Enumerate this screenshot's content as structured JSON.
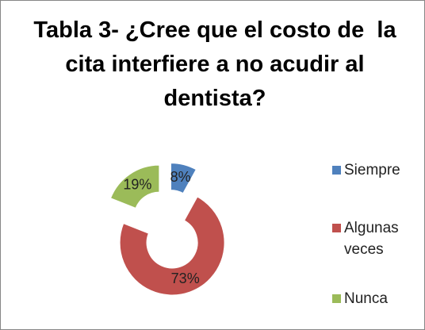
{
  "chart_data": {
    "type": "pie",
    "title": "Tabla 3- ¿Cree que el costo de  la cita interfiere a no acudir al dentista?",
    "categories": [
      "Siempre",
      "Algunas veces",
      "Nunca"
    ],
    "values": [
      8,
      73,
      19
    ],
    "value_labels": [
      "8%",
      "73%",
      "19%"
    ],
    "colors": [
      "#4f81bd",
      "#c0504d",
      "#9bbb59"
    ],
    "donut": true,
    "exploded": true,
    "legend": "right"
  }
}
